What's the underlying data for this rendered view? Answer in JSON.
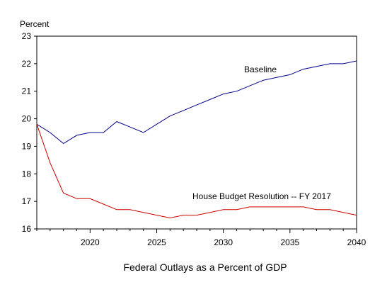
{
  "chart_data": {
    "type": "line",
    "ylabel": "Percent",
    "xlabel": "Federal Outlays as a Percent of GDP",
    "xlim": [
      2016,
      2040
    ],
    "ylim": [
      16,
      23
    ],
    "x_ticks": [
      2020,
      2025,
      2030,
      2035,
      2040
    ],
    "y_ticks": [
      16,
      17,
      18,
      19,
      20,
      21,
      22,
      23
    ],
    "grid": false,
    "series": [
      {
        "name": "Baseline",
        "color": "#00008b",
        "x": [
          2016,
          2017,
          2018,
          2019,
          2020,
          2021,
          2022,
          2023,
          2024,
          2025,
          2026,
          2027,
          2028,
          2029,
          2030,
          2031,
          2032,
          2033,
          2034,
          2035,
          2036,
          2037,
          2038,
          2039,
          2040
        ],
        "values": [
          19.8,
          19.5,
          19.1,
          19.4,
          19.5,
          19.5,
          19.9,
          19.7,
          19.5,
          19.8,
          20.1,
          20.3,
          20.5,
          20.7,
          20.9,
          21.0,
          21.2,
          21.4,
          21.5,
          21.6,
          21.8,
          21.9,
          22.0,
          22.0,
          22.1
        ]
      },
      {
        "name": "House Budget Resolution --  FY 2017",
        "color": "#cc0000",
        "x": [
          2016,
          2017,
          2018,
          2019,
          2020,
          2021,
          2022,
          2023,
          2024,
          2025,
          2026,
          2027,
          2028,
          2029,
          2030,
          2031,
          2032,
          2033,
          2034,
          2035,
          2036,
          2037,
          2038,
          2039,
          2040
        ],
        "values": [
          19.8,
          18.4,
          17.3,
          17.1,
          17.1,
          16.9,
          16.7,
          16.7,
          16.6,
          16.5,
          16.4,
          16.5,
          16.5,
          16.6,
          16.7,
          16.7,
          16.8,
          16.8,
          16.8,
          16.8,
          16.8,
          16.7,
          16.7,
          16.6,
          16.5
        ]
      }
    ]
  }
}
